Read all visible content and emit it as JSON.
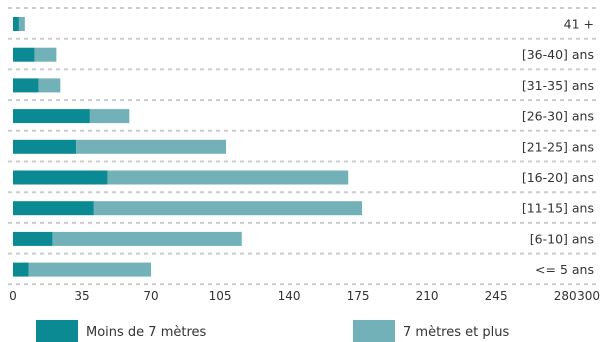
{
  "chart_data": {
    "type": "bar",
    "orientation": "horizontal",
    "stacked": true,
    "categories": [
      "41 +",
      "[36-40] ans",
      "[31-35] ans",
      "[26-30] ans",
      "[21-25] ans",
      "[16-20] ans",
      "[11-15] ans",
      "[6-10] ans",
      "<= 5 ans"
    ],
    "series": [
      {
        "name": "Moins de 7 mètres",
        "color": "#0b8a94",
        "values": [
          3,
          11,
          13,
          39,
          32,
          48,
          41,
          20,
          8
        ]
      },
      {
        "name": "7 mètres et plus",
        "color": "#72b1b8",
        "values": [
          3,
          11,
          11,
          20,
          76,
          122,
          136,
          96,
          62
        ]
      }
    ],
    "xticks": [
      "0",
      "35",
      "70",
      "105",
      "140",
      "175",
      "210",
      "245",
      "280",
      "300"
    ],
    "xlim": [
      0,
      300
    ],
    "grid": true,
    "legend_position": "bottom"
  }
}
